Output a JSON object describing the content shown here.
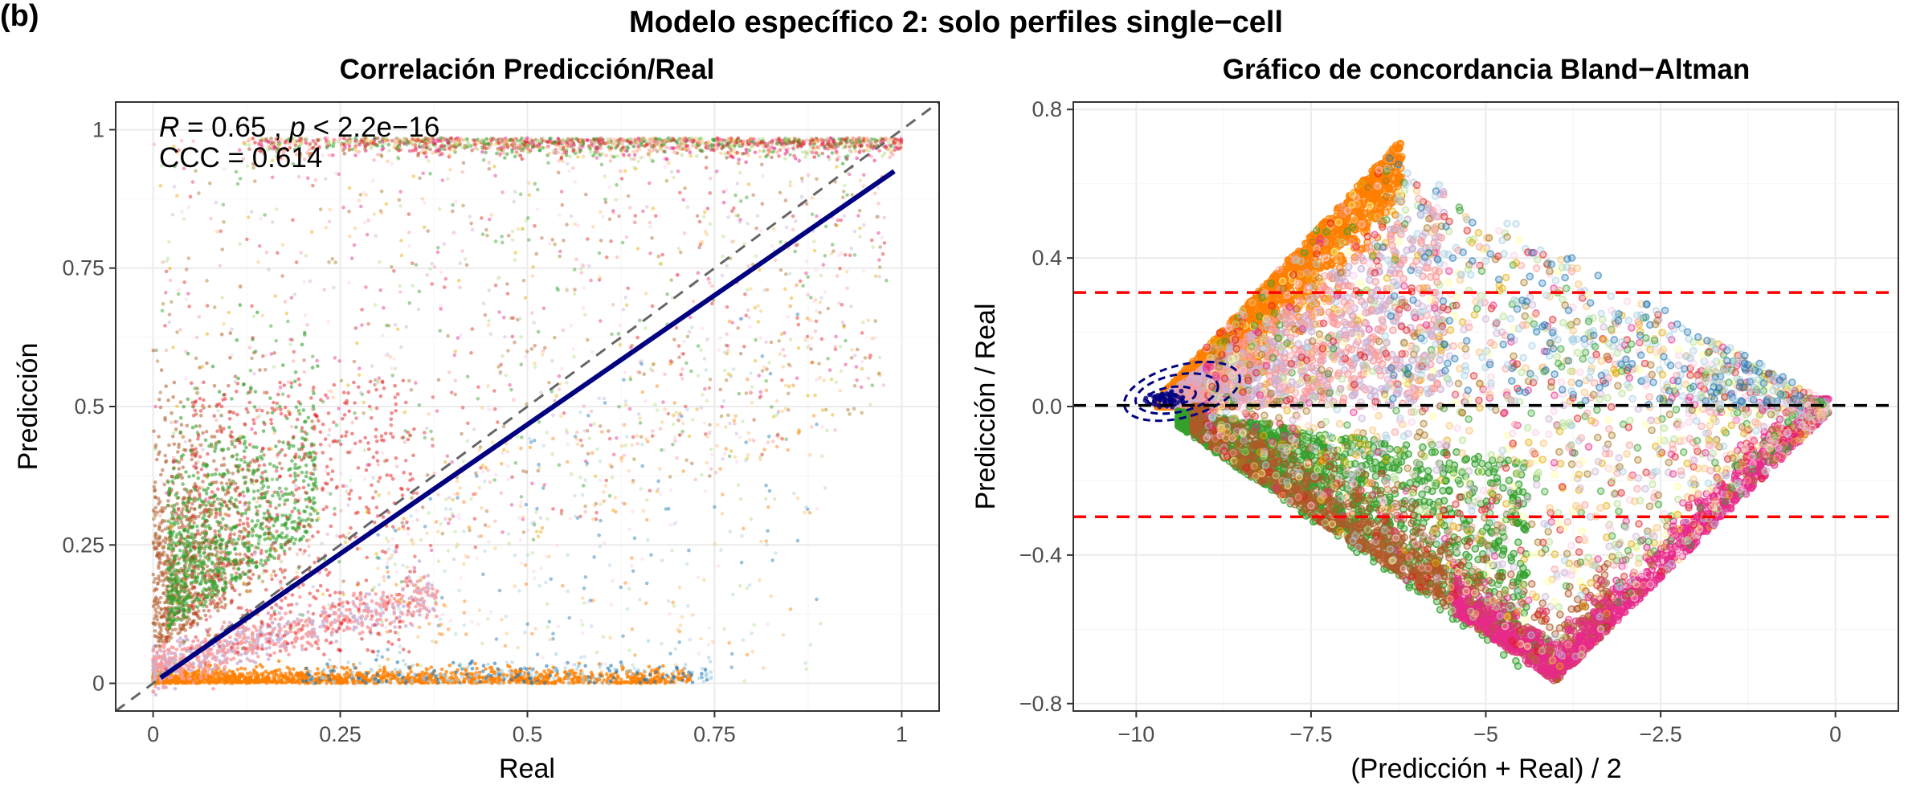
{
  "figure": {
    "tag": "(b)",
    "title": "Modelo específico 2: solo perfiles single−cell"
  },
  "palette": [
    "#ff7f00",
    "#33a02c",
    "#b15928",
    "#fb9a99",
    "#cab2d6",
    "#e31a1c",
    "#e7298a",
    "#1f78b4",
    "#a6cee3",
    "#fdbf6f",
    "#b2df8a",
    "#fccde5",
    "#e6ab02",
    "#a6761d",
    "#ffff99"
  ],
  "chart_data": [
    {
      "type": "scatter",
      "subtitle": "Correlación Predicción/Real",
      "xlabel": "Real",
      "ylabel": "Predicción",
      "xlim": [
        -0.05,
        1.05
      ],
      "ylim": [
        -0.05,
        1.05
      ],
      "xticks": [
        0,
        0.25,
        0.5,
        0.75,
        1
      ],
      "xtick_labels": [
        "0",
        "0.25",
        "0.5",
        "0.75",
        "1"
      ],
      "yticks": [
        0,
        0.25,
        0.5,
        0.75,
        1
      ],
      "ytick_labels": [
        "0",
        "0.25",
        "0.5",
        "0.75",
        "1"
      ],
      "grid": true,
      "annotation": {
        "r_symbol": "R",
        "r_text": " = 0.65 , ",
        "p_symbol": "p",
        "p_text": " < 2.2e−16",
        "ccc_text": "CCC = 0.614",
        "R": 0.65,
        "p": "< 2.2e-16",
        "CCC": 0.614
      },
      "identity_line": {
        "x": [
          -0.05,
          1.05
        ],
        "y": [
          -0.05,
          1.05
        ],
        "style": "dashed",
        "color": "#666666"
      },
      "regression_line": {
        "x": [
          0.01,
          0.99
        ],
        "y": [
          0.01,
          0.925
        ],
        "color": "#000080"
      },
      "point_count_approx": 100000
    },
    {
      "type": "scatter",
      "subtitle": "Gráfico de concordancia Bland−Altman",
      "xlabel": "(Predicción + Real) / 2",
      "ylabel": "Predicción / Real",
      "xlim": [
        -10.9,
        0.9
      ],
      "ylim": [
        -0.82,
        0.82
      ],
      "xticks": [
        -10,
        -7.5,
        -5,
        -2.5,
        0
      ],
      "xtick_labels": [
        "−10",
        "−7.5",
        "−5",
        "−2.5",
        "0"
      ],
      "yticks": [
        -0.8,
        -0.4,
        0.0,
        0.4,
        0.8
      ],
      "ytick_labels": [
        "−0.8",
        "−0.4",
        "0.0",
        "0.4",
        "0.8"
      ],
      "grid": true,
      "mean_line": {
        "y": 0.003,
        "color": "#000000",
        "style": "dashed"
      },
      "upper_limit": {
        "y": 0.307,
        "color": "#ff0000",
        "style": "dashed"
      },
      "lower_limit": {
        "y": -0.297,
        "color": "#ff0000",
        "style": "dashed"
      },
      "density_contour_center": {
        "x": -9.6,
        "y": 0.02,
        "color": "#000080"
      },
      "point_count_approx": 100000
    }
  ]
}
